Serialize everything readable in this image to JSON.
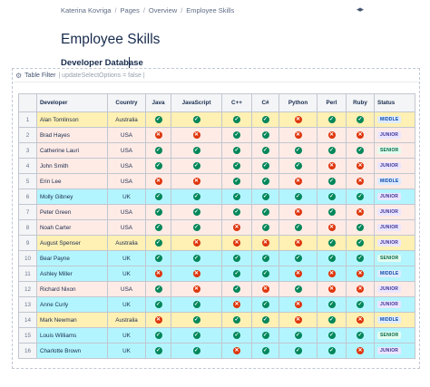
{
  "breadcrumb": [
    "Katerina Kovriga",
    "Pages",
    "Overview",
    "Employee Skills"
  ],
  "page_title": "Employee Skills",
  "db_title": "Developer Database",
  "macro": {
    "name": "Table Filter",
    "params": "| updateSelectOptions = false |"
  },
  "table": {
    "headers": [
      "",
      "Developer",
      "Country",
      "Java",
      "JavaScript",
      "C++",
      "C#",
      "Python",
      "Perl",
      "Ruby",
      "Status"
    ],
    "rows": [
      {
        "n": "1",
        "name": "Alan Tomlinson",
        "country": "Australia",
        "skills": [
          true,
          true,
          true,
          true,
          false,
          true,
          true
        ],
        "status": "MIDDLE",
        "color": "yellow"
      },
      {
        "n": "2",
        "name": "Brad Hayes",
        "country": "USA",
        "skills": [
          false,
          false,
          true,
          true,
          false,
          false,
          false
        ],
        "status": "JUNIOR",
        "color": "pink"
      },
      {
        "n": "3",
        "name": "Catherine Lauri",
        "country": "USA",
        "skills": [
          true,
          true,
          true,
          true,
          true,
          true,
          true
        ],
        "status": "SENIOR",
        "color": "pink"
      },
      {
        "n": "4",
        "name": "John Smith",
        "country": "USA",
        "skills": [
          true,
          true,
          true,
          true,
          true,
          false,
          false
        ],
        "status": "JUNIOR",
        "color": "pink"
      },
      {
        "n": "5",
        "name": "Erin Lee",
        "country": "USA",
        "skills": [
          false,
          false,
          true,
          true,
          false,
          true,
          false
        ],
        "status": "MIDDLE",
        "color": "pink"
      },
      {
        "n": "6",
        "name": "Molly Gibney",
        "country": "UK",
        "skills": [
          true,
          true,
          true,
          true,
          true,
          true,
          true
        ],
        "status": "JUNIOR",
        "color": "cyan"
      },
      {
        "n": "7",
        "name": "Peter Green",
        "country": "USA",
        "skills": [
          true,
          true,
          true,
          true,
          false,
          true,
          false
        ],
        "status": "JUNIOR",
        "color": "pink"
      },
      {
        "n": "8",
        "name": "Noah Carter",
        "country": "USA",
        "skills": [
          true,
          true,
          false,
          true,
          true,
          false,
          true
        ],
        "status": "JUNIOR",
        "color": "pink"
      },
      {
        "n": "9",
        "name": "August Spenser",
        "country": "Australia",
        "skills": [
          true,
          false,
          false,
          false,
          false,
          true,
          true
        ],
        "status": "JUNIOR",
        "color": "yellow"
      },
      {
        "n": "10",
        "name": "Bear Payne",
        "country": "UK",
        "skills": [
          true,
          true,
          true,
          true,
          true,
          true,
          true
        ],
        "status": "SENIOR",
        "color": "cyan"
      },
      {
        "n": "11",
        "name": "Ashley Miller",
        "country": "UK",
        "skills": [
          false,
          false,
          true,
          true,
          false,
          false,
          false
        ],
        "status": "MIDDLE",
        "color": "cyan"
      },
      {
        "n": "12",
        "name": "Richard Nixon",
        "country": "USA",
        "skills": [
          true,
          false,
          true,
          false,
          true,
          false,
          false
        ],
        "status": "JUNIOR",
        "color": "pink"
      },
      {
        "n": "13",
        "name": "Anne Curly",
        "country": "UK",
        "skills": [
          true,
          true,
          false,
          true,
          false,
          true,
          true
        ],
        "status": "JUNIOR",
        "color": "cyan"
      },
      {
        "n": "14",
        "name": "Mark Newman",
        "country": "Australia",
        "skills": [
          false,
          true,
          true,
          true,
          false,
          true,
          false
        ],
        "status": "MIDDLE",
        "color": "yellow"
      },
      {
        "n": "15",
        "name": "Louis Williams",
        "country": "UK",
        "skills": [
          true,
          true,
          true,
          true,
          true,
          true,
          true
        ],
        "status": "SENIOR",
        "color": "cyan"
      },
      {
        "n": "16",
        "name": "Charlotte Brown",
        "country": "UK",
        "skills": [
          true,
          true,
          false,
          true,
          true,
          true,
          false
        ],
        "status": "JUNIOR",
        "color": "cyan"
      }
    ]
  }
}
